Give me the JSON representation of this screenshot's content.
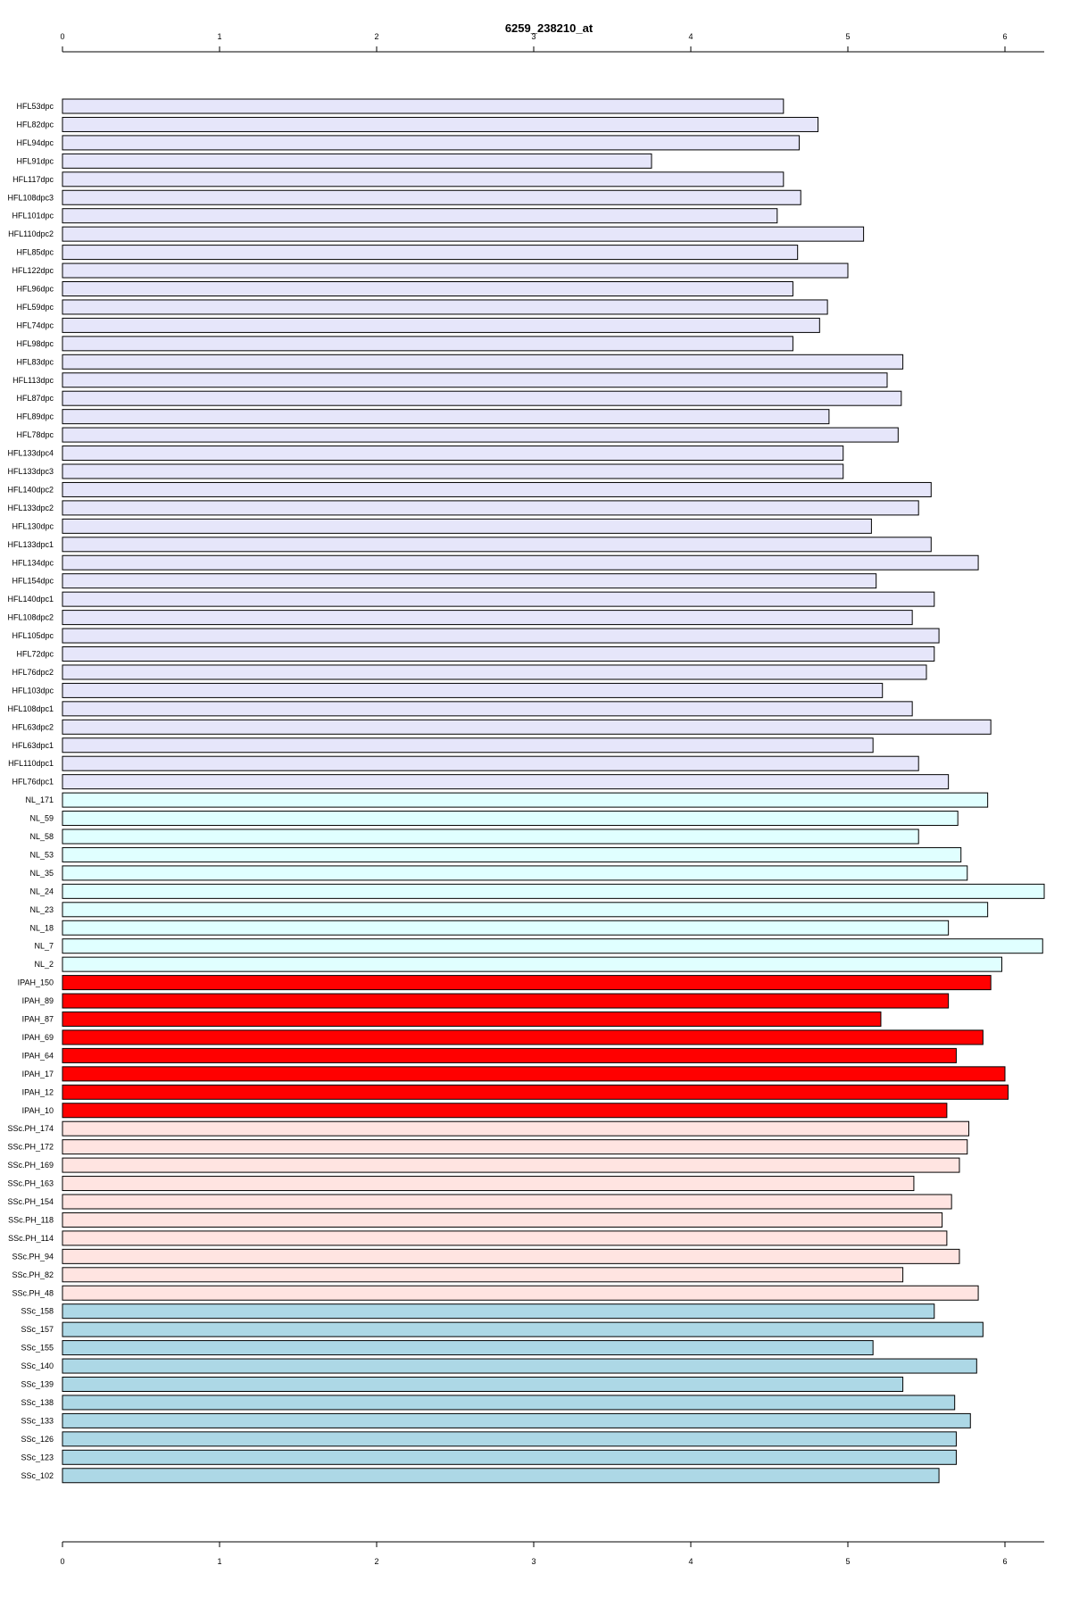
{
  "chart_data": {
    "type": "bar",
    "orientation": "horizontal",
    "title": "6259_238210_at",
    "xlabel": "",
    "ylabel": "",
    "xlim": [
      0,
      6.25
    ],
    "x_ticks": [
      "0",
      "1",
      "2",
      "3",
      "4",
      "5",
      "6"
    ],
    "grid": false,
    "legend": "none",
    "categories": [
      "HFL53dpc",
      "HFL82dpc",
      "HFL94dpc",
      "HFL91dpc",
      "HFL117dpc",
      "HFL108dpc3",
      "HFL101dpc",
      "HFL110dpc2",
      "HFL85dpc",
      "HFL122dpc",
      "HFL96dpc",
      "HFL59dpc",
      "HFL74dpc",
      "HFL98dpc",
      "HFL83dpc",
      "HFL113dpc",
      "HFL87dpc",
      "HFL89dpc",
      "HFL78dpc",
      "HFL133dpc4",
      "HFL133dpc3",
      "HFL140dpc2",
      "HFL133dpc2",
      "HFL130dpc",
      "HFL133dpc1",
      "HFL134dpc",
      "HFL154dpc",
      "HFL140dpc1",
      "HFL108dpc2",
      "HFL105dpc",
      "HFL72dpc",
      "HFL76dpc2",
      "HFL103dpc",
      "HFL108dpc1",
      "HFL63dpc2",
      "HFL63dpc1",
      "HFL110dpc1",
      "HFL76dpc1",
      "NL_171",
      "NL_59",
      "NL_58",
      "NL_53",
      "NL_35",
      "NL_24",
      "NL_23",
      "NL_18",
      "NL_7",
      "NL_2",
      "IPAH_150",
      "IPAH_89",
      "IPAH_87",
      "IPAH_69",
      "IPAH_64",
      "IPAH_17",
      "IPAH_12",
      "IPAH_10",
      "SSc.PH_174",
      "SSc.PH_172",
      "SSc.PH_169",
      "SSc.PH_163",
      "SSc.PH_154",
      "SSc.PH_118",
      "SSc.PH_114",
      "SSc.PH_94",
      "SSc.PH_82",
      "SSc.PH_48",
      "SSc_158",
      "SSc_157",
      "SSc_155",
      "SSc_140",
      "SSc_139",
      "SSc_138",
      "SSc_133",
      "SSc_126",
      "SSc_123",
      "SSc_102"
    ],
    "values": [
      4.59,
      4.81,
      4.69,
      3.75,
      4.59,
      4.7,
      4.55,
      5.1,
      4.68,
      5.0,
      4.65,
      4.87,
      4.82,
      4.65,
      5.35,
      5.25,
      5.34,
      4.88,
      5.32,
      4.97,
      4.97,
      5.53,
      5.45,
      5.15,
      5.53,
      5.83,
      5.18,
      5.55,
      5.41,
      5.58,
      5.55,
      5.5,
      5.22,
      5.41,
      5.91,
      5.16,
      5.45,
      5.64,
      5.89,
      5.7,
      5.45,
      5.72,
      5.76,
      6.25,
      5.89,
      5.64,
      6.24,
      5.98,
      5.91,
      5.64,
      5.21,
      5.86,
      5.69,
      6.0,
      6.02,
      5.63,
      5.77,
      5.76,
      5.71,
      5.42,
      5.66,
      5.6,
      5.63,
      5.71,
      5.35,
      5.83,
      5.55,
      5.86,
      5.16,
      5.82,
      5.35,
      5.68,
      5.78,
      5.69,
      5.69,
      5.58
    ],
    "colors": [
      "#e6e6fa",
      "#e6e6fa",
      "#e6e6fa",
      "#e6e6fa",
      "#e6e6fa",
      "#e6e6fa",
      "#e6e6fa",
      "#e6e6fa",
      "#e6e6fa",
      "#e6e6fa",
      "#e6e6fa",
      "#e6e6fa",
      "#e6e6fa",
      "#e6e6fa",
      "#e6e6fa",
      "#e6e6fa",
      "#e6e6fa",
      "#e6e6fa",
      "#e6e6fa",
      "#e6e6fa",
      "#e6e6fa",
      "#e6e6fa",
      "#e6e6fa",
      "#e6e6fa",
      "#e6e6fa",
      "#e6e6fa",
      "#e6e6fa",
      "#e6e6fa",
      "#e6e6fa",
      "#e6e6fa",
      "#e6e6fa",
      "#e6e6fa",
      "#e6e6fa",
      "#e6e6fa",
      "#e6e6fa",
      "#e6e6fa",
      "#e6e6fa",
      "#e6e6fa",
      "#e0ffff",
      "#e0ffff",
      "#e0ffff",
      "#e0ffff",
      "#e0ffff",
      "#e0ffff",
      "#e0ffff",
      "#e0ffff",
      "#e0ffff",
      "#e0ffff",
      "#ff0000",
      "#ff0000",
      "#ff0000",
      "#ff0000",
      "#ff0000",
      "#ff0000",
      "#ff0000",
      "#ff0000",
      "#ffe4e1",
      "#ffe4e1",
      "#ffe4e1",
      "#ffe4e1",
      "#ffe4e1",
      "#ffe4e1",
      "#ffe4e1",
      "#ffe4e1",
      "#ffe4e1",
      "#ffe4e1",
      "#add8e6",
      "#add8e6",
      "#add8e6",
      "#add8e6",
      "#add8e6",
      "#add8e6",
      "#add8e6",
      "#add8e6",
      "#add8e6",
      "#add8e6"
    ]
  }
}
